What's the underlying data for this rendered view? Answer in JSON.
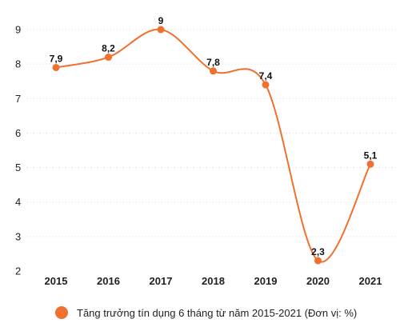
{
  "chart_data": {
    "type": "line",
    "smooth": true,
    "categories": [
      "2015",
      "2016",
      "2017",
      "2018",
      "2019",
      "2020",
      "2021"
    ],
    "series": [
      {
        "name": "Tăng trưởng tín dụng 6 tháng từ năm 2015-2021 (Đơn vị: %)",
        "values": [
          7.9,
          8.2,
          9,
          7.8,
          7.4,
          2.3,
          5.1
        ],
        "labels": [
          "7,9",
          "8,2",
          "9",
          "7,8",
          "7,4",
          "2,3",
          "5,1"
        ]
      }
    ],
    "yticks": [
      "2",
      "3",
      "4",
      "5",
      "6",
      "7",
      "8",
      "9"
    ],
    "ylim": [
      2,
      9
    ],
    "grid": true,
    "legend_position": "bottom",
    "color": "#f07030"
  }
}
